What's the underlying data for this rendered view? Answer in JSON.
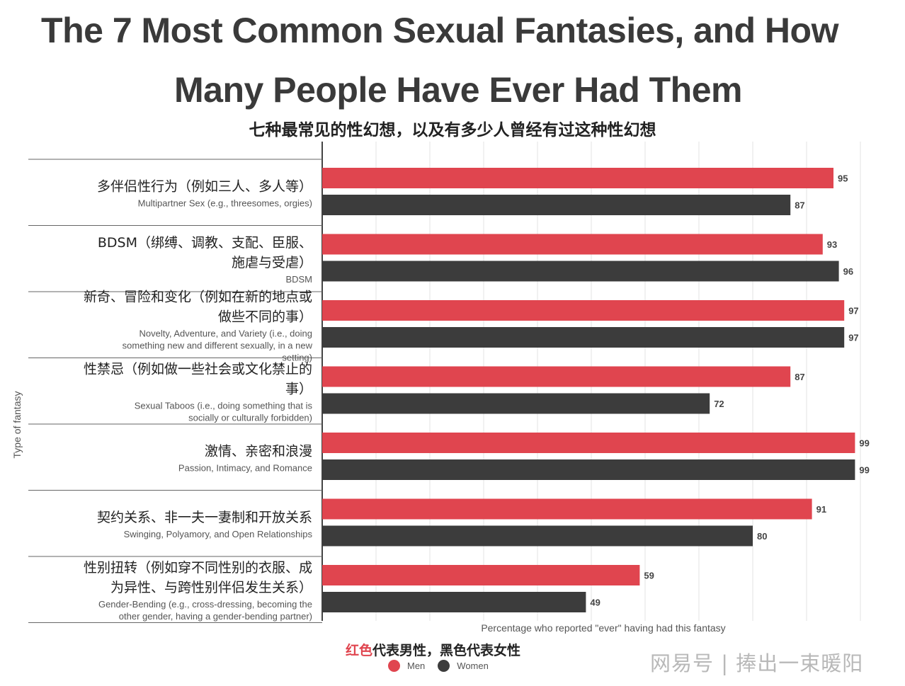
{
  "title_line1": "The 7 Most Common Sexual Fantasies, and How",
  "title_line2": "Many People Have Ever Had Them",
  "subtitle_zh": "七种最常见的性幻想，以及有多少人曾经有过这种性幻想",
  "watermark": "网易号 | 捧出一束暖阳",
  "legend_note": {
    "red_part": "红色",
    "text1": "代表男性，",
    "black_part": "黑色",
    "text2": "代表女性"
  },
  "colors": {
    "men": "#e0454f",
    "women": "#3c3c3c",
    "grid": "#e3e3e3",
    "axis": "#444444"
  },
  "chart_data": {
    "type": "bar",
    "orientation": "horizontal",
    "ylabel": "Type of fantasy",
    "xlabel": "Percentage who reported \"ever\" having had this fantasy",
    "xlim": [
      0,
      100
    ],
    "grid": true,
    "legend_position": "bottom-center",
    "categories": [
      {
        "en": "Multipartner Sex (e.g., threesomes, orgies)",
        "zh": "多伴侣性行为（例如三人、多人等）"
      },
      {
        "en": "BDSM",
        "zh": "BDSM（绑缚、调教、支配、臣服、施虐与受虐）"
      },
      {
        "en": "Novelty, Adventure, and Variety (i.e., doing something new and different sexually, in a new setting)",
        "zh": "新奇、冒险和变化（例如在新的地点或做些不同的事）"
      },
      {
        "en": "Sexual Taboos (i.e., doing something that is socially or culturally forbidden)",
        "zh": "性禁忌（例如做一些社会或文化禁止的事）"
      },
      {
        "en": "Passion, Intimacy, and Romance",
        "zh": "激情、亲密和浪漫"
      },
      {
        "en": "Swinging, Polyamory, and Open Relationships",
        "zh": "契约关系、非一夫一妻制和开放关系"
      },
      {
        "en": "Gender-Bending (e.g., cross-dressing, becoming the other gender, having a gender-bending partner)",
        "zh": "性别扭转（例如穿不同性别的衣服、成为异性、与跨性别伴侣发生关系）"
      }
    ],
    "series": [
      {
        "name": "Men",
        "values": [
          95,
          93,
          97,
          87,
          99,
          91,
          59
        ]
      },
      {
        "name": "Women",
        "values": [
          87,
          96,
          97,
          72,
          99,
          80,
          49
        ]
      }
    ]
  }
}
